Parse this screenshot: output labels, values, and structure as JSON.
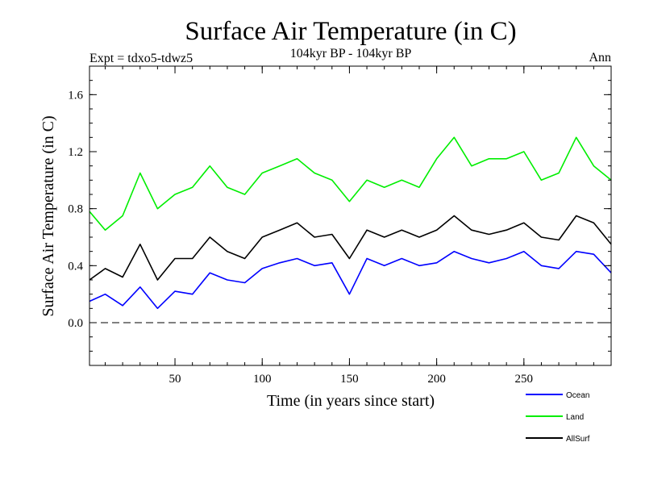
{
  "chart_data": {
    "type": "line",
    "title": "Surface Air Temperature (in C)",
    "subtitle": "104kyr BP - 104kyr BP",
    "left_note": "Expt = tdxo5-tdwz5",
    "right_note": "Ann",
    "xlabel": "Time (in years since start)",
    "ylabel": "Surface Air Temperature (in C)",
    "xlim": [
      1,
      300
    ],
    "ylim": [
      -0.3,
      1.8
    ],
    "xticks": [
      50,
      100,
      150,
      200,
      250
    ],
    "yticks": [
      0.0,
      0.4,
      0.8,
      1.2,
      1.6
    ],
    "ytick_labels": [
      "0.0",
      "0.4",
      "0.8",
      "1.2",
      "1.6"
    ],
    "zero_line": "dashed",
    "legend_position": "bottom-right",
    "series": [
      {
        "name": "Ocean",
        "color": "#0000ff",
        "x": [
          1,
          10,
          20,
          30,
          40,
          50,
          60,
          70,
          80,
          90,
          100,
          110,
          120,
          130,
          140,
          150,
          160,
          170,
          180,
          190,
          200,
          210,
          220,
          230,
          240,
          250,
          260,
          270,
          280,
          290,
          300
        ],
        "values": [
          0.15,
          0.2,
          0.12,
          0.25,
          0.1,
          0.22,
          0.2,
          0.35,
          0.3,
          0.28,
          0.38,
          0.42,
          0.45,
          0.4,
          0.42,
          0.2,
          0.45,
          0.4,
          0.45,
          0.4,
          0.42,
          0.5,
          0.45,
          0.42,
          0.45,
          0.5,
          0.4,
          0.38,
          0.5,
          0.48,
          0.35
        ]
      },
      {
        "name": "Land",
        "color": "#00ee00",
        "x": [
          1,
          10,
          20,
          30,
          40,
          50,
          60,
          70,
          80,
          90,
          100,
          110,
          120,
          130,
          140,
          150,
          160,
          170,
          180,
          190,
          200,
          210,
          220,
          230,
          240,
          250,
          260,
          270,
          280,
          290,
          300
        ],
        "values": [
          0.78,
          0.65,
          0.75,
          1.05,
          0.8,
          0.9,
          0.95,
          1.1,
          0.95,
          0.9,
          1.05,
          1.1,
          1.15,
          1.05,
          1.0,
          0.85,
          1.0,
          0.95,
          1.0,
          0.95,
          1.15,
          1.3,
          1.1,
          1.15,
          1.15,
          1.2,
          1.0,
          1.05,
          1.3,
          1.1,
          1.0
        ]
      },
      {
        "name": "AllSurf",
        "color": "#000000",
        "x": [
          1,
          10,
          20,
          30,
          40,
          50,
          60,
          70,
          80,
          90,
          100,
          110,
          120,
          130,
          140,
          150,
          160,
          170,
          180,
          190,
          200,
          210,
          220,
          230,
          240,
          250,
          260,
          270,
          280,
          290,
          300
        ],
        "values": [
          0.3,
          0.38,
          0.32,
          0.55,
          0.3,
          0.45,
          0.45,
          0.6,
          0.5,
          0.45,
          0.6,
          0.65,
          0.7,
          0.6,
          0.62,
          0.45,
          0.65,
          0.6,
          0.65,
          0.6,
          0.65,
          0.75,
          0.65,
          0.62,
          0.65,
          0.7,
          0.6,
          0.58,
          0.75,
          0.7,
          0.55
        ]
      }
    ]
  }
}
